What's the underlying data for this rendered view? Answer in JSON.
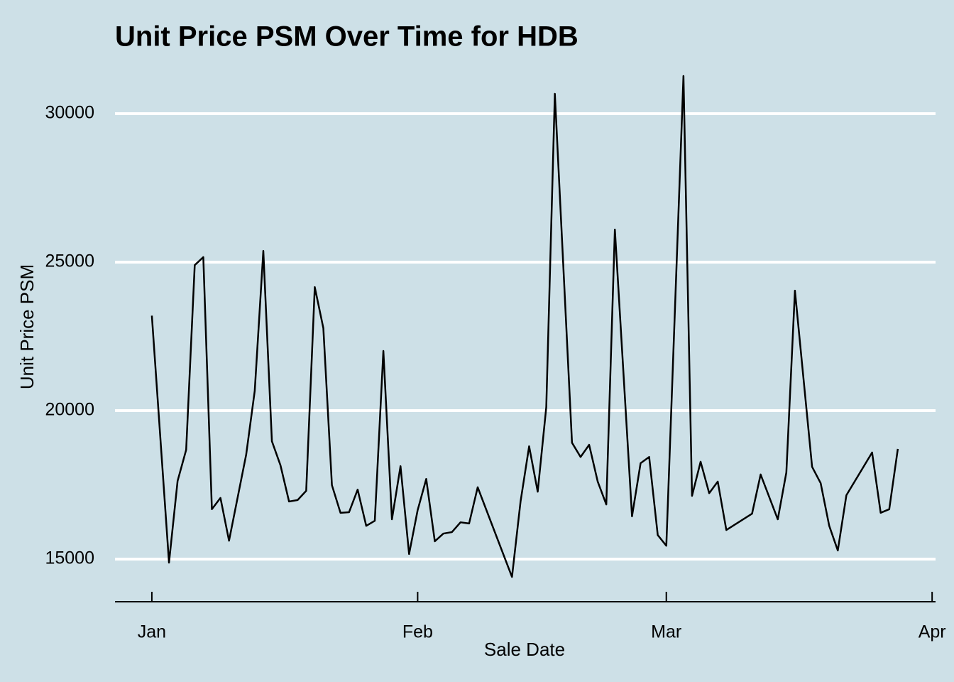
{
  "chart_data": {
    "type": "line",
    "title": "Unit Price PSM Over Time for HDB",
    "x_label": "Sale Date",
    "y_label": "Unit Price PSM",
    "x": [
      0,
      2,
      3,
      4,
      5,
      6,
      7,
      8,
      9,
      11,
      12,
      13,
      14,
      15,
      16,
      17,
      18,
      19,
      20,
      21,
      22,
      23,
      24,
      25,
      26,
      27,
      28,
      29,
      30,
      31,
      32,
      33,
      34,
      35,
      36,
      37,
      38,
      42,
      43,
      44,
      45,
      46,
      47,
      49,
      50,
      51,
      52,
      53,
      54,
      56,
      57,
      58,
      59,
      60,
      62,
      63,
      64,
      65,
      66,
      67,
      70,
      71,
      73,
      74,
      75,
      77,
      78,
      79,
      80,
      81,
      84,
      85,
      86,
      87
    ],
    "series": [
      {
        "name": "Unit Price PSM",
        "color": "#000000",
        "values": [
          23200,
          14880,
          17630,
          18680,
          24900,
          25170,
          16680,
          17060,
          15620,
          18520,
          20670,
          25380,
          18970,
          18160,
          16940,
          16990,
          17300,
          24160,
          22780,
          17490,
          16560,
          16580,
          17340,
          16120,
          16290,
          22010,
          16340,
          18130,
          15170,
          16650,
          17700,
          15600,
          15860,
          15910,
          16240,
          16200,
          17420,
          14400,
          16940,
          18800,
          17270,
          20120,
          30670,
          18920,
          18440,
          18850,
          17610,
          16840,
          26100,
          16440,
          18230,
          18440,
          15810,
          15450,
          31270,
          17130,
          18280,
          17220,
          17610,
          15980,
          16530,
          17850,
          16340,
          17920,
          24040,
          18110,
          17560,
          16120,
          15290,
          17150,
          18590,
          16560,
          16680,
          18710
        ]
      }
    ],
    "xlim": [
      -4.3,
      91.4
    ],
    "xticks": [
      {
        "value": 0,
        "label": "Jan"
      },
      {
        "value": 31,
        "label": "Feb"
      },
      {
        "value": 60,
        "label": "Mar"
      },
      {
        "value": 91,
        "label": "Apr"
      }
    ],
    "ylim": [
      13565,
      31700
    ],
    "yticks": [
      15000,
      20000,
      25000,
      30000
    ],
    "grid": true,
    "grid_color": "#ffffff",
    "background": "#cde0e7"
  }
}
